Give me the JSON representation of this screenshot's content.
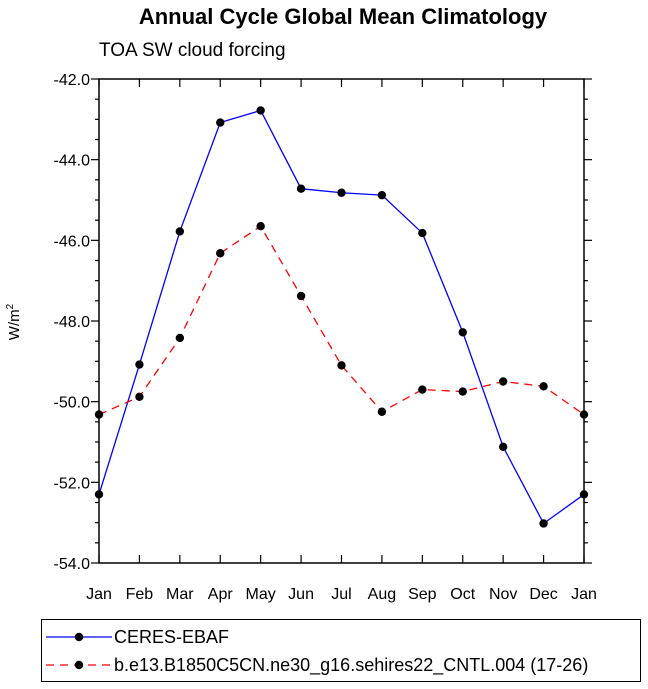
{
  "chart_data": {
    "type": "line",
    "title": "Annual Cycle Global Mean Climatology",
    "subtitle": "TOA SW cloud forcing",
    "xlabel": "",
    "ylabel": "W/m",
    "ylabel_superscript": "2",
    "categories": [
      "Jan",
      "Feb",
      "Mar",
      "Apr",
      "May",
      "Jun",
      "Jul",
      "Aug",
      "Sep",
      "Oct",
      "Nov",
      "Dec",
      "Jan"
    ],
    "ylim": [
      -54.0,
      -42.0
    ],
    "yticks": [
      "-42.0",
      "-44.0",
      "-46.0",
      "-48.0",
      "-50.0",
      "-52.0",
      "-54.0"
    ],
    "ytick_values": [
      -42,
      -44,
      -46,
      -48,
      -50,
      -52,
      -54
    ],
    "grid": false,
    "legend_position": "bottom",
    "series": [
      {
        "name": "CERES-EBAF",
        "color": "#0000ff",
        "dash": "solid",
        "values": [
          -52.3,
          -49.08,
          -45.78,
          -43.08,
          -42.78,
          -44.72,
          -44.82,
          -44.88,
          -45.82,
          -48.28,
          -51.12,
          -53.02,
          -52.3
        ]
      },
      {
        "name": "b.e13.B1850C5CN.ne30_g16.sehires22_CNTL.004 (17-26)",
        "color": "#ff0000",
        "dash": "dashed",
        "values": [
          -50.32,
          -49.88,
          -48.42,
          -46.32,
          -45.65,
          -47.38,
          -49.1,
          -50.25,
          -49.7,
          -49.75,
          -49.5,
          -49.62,
          -50.32
        ]
      }
    ]
  }
}
